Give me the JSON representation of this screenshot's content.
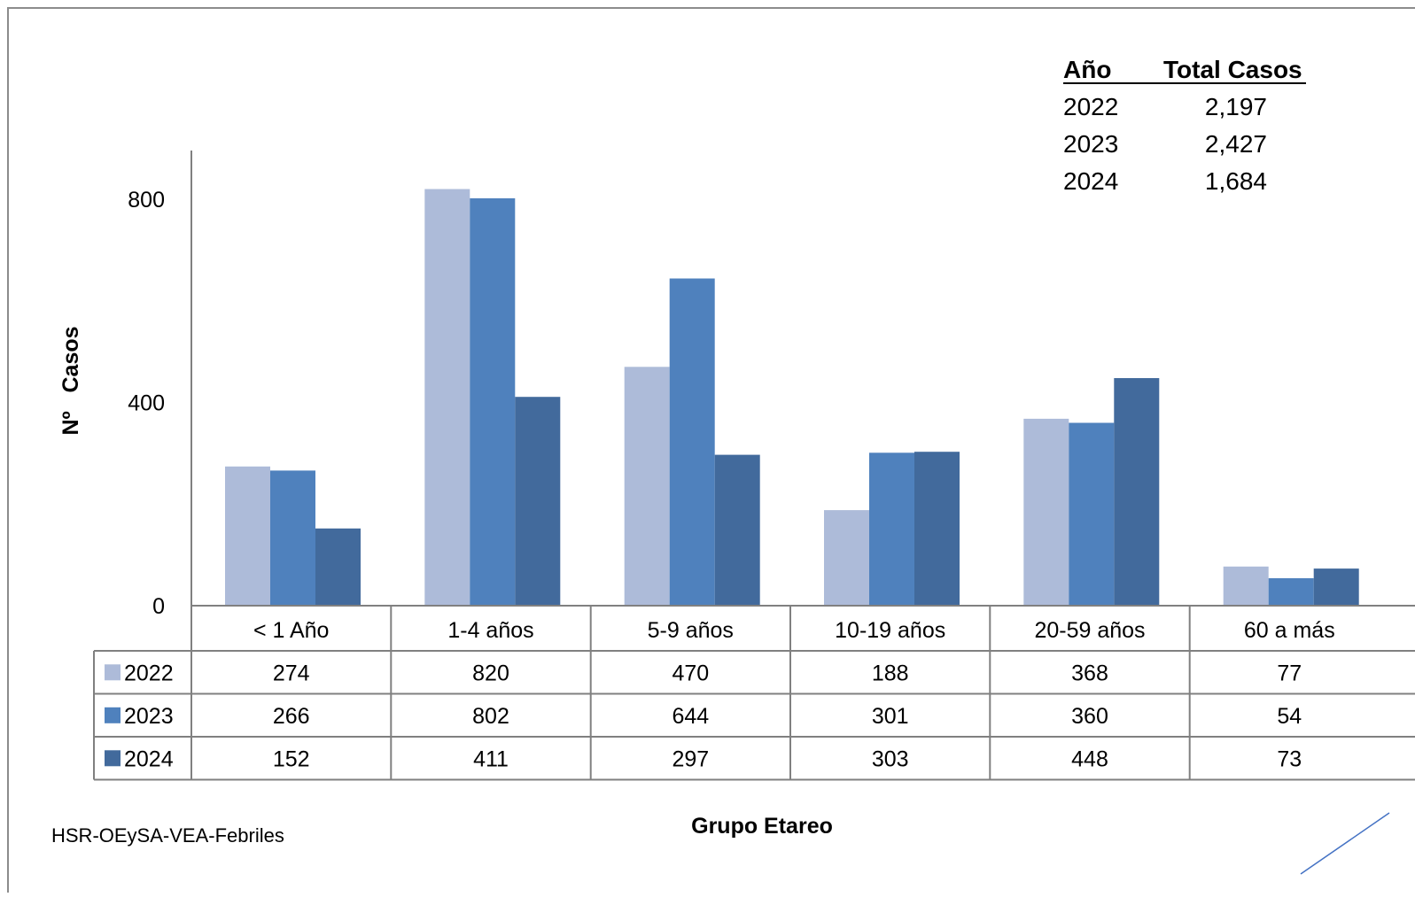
{
  "chart_data": {
    "type": "bar",
    "title": "",
    "xlabel": "Grupo Etareo",
    "ylabel": "Nº   Casos",
    "categories": [
      "< 1 Año",
      "1-4 años",
      "5-9 años",
      "10-19 años",
      "20-59 años",
      "60 a más"
    ],
    "series": [
      {
        "name": "2022",
        "values": [
          274,
          820,
          470,
          188,
          368,
          77
        ],
        "color": "#adbbd9"
      },
      {
        "name": "2023",
        "values": [
          266,
          802,
          644,
          301,
          360,
          54
        ],
        "color": "#4f81bd"
      },
      {
        "name": "2024",
        "values": [
          152,
          411,
          297,
          303,
          448,
          73
        ],
        "color": "#426a9c"
      }
    ],
    "yticks": [
      0,
      400,
      800
    ],
    "ylim": [
      0,
      800
    ],
    "grid": false,
    "legend": "data-table",
    "data_table": true
  },
  "totals": {
    "header": {
      "year": "Año",
      "total": "Total Casos"
    },
    "rows": [
      {
        "year": "2022",
        "total": "2,197"
      },
      {
        "year": "2023",
        "total": "2,427"
      },
      {
        "year": "2024",
        "total": "1,684"
      }
    ]
  },
  "source": "HSR-OEySA-VEA-Febriles",
  "colors": {
    "frame": "#8c8c8c",
    "axis": "#808080",
    "line": "#4472c4"
  }
}
